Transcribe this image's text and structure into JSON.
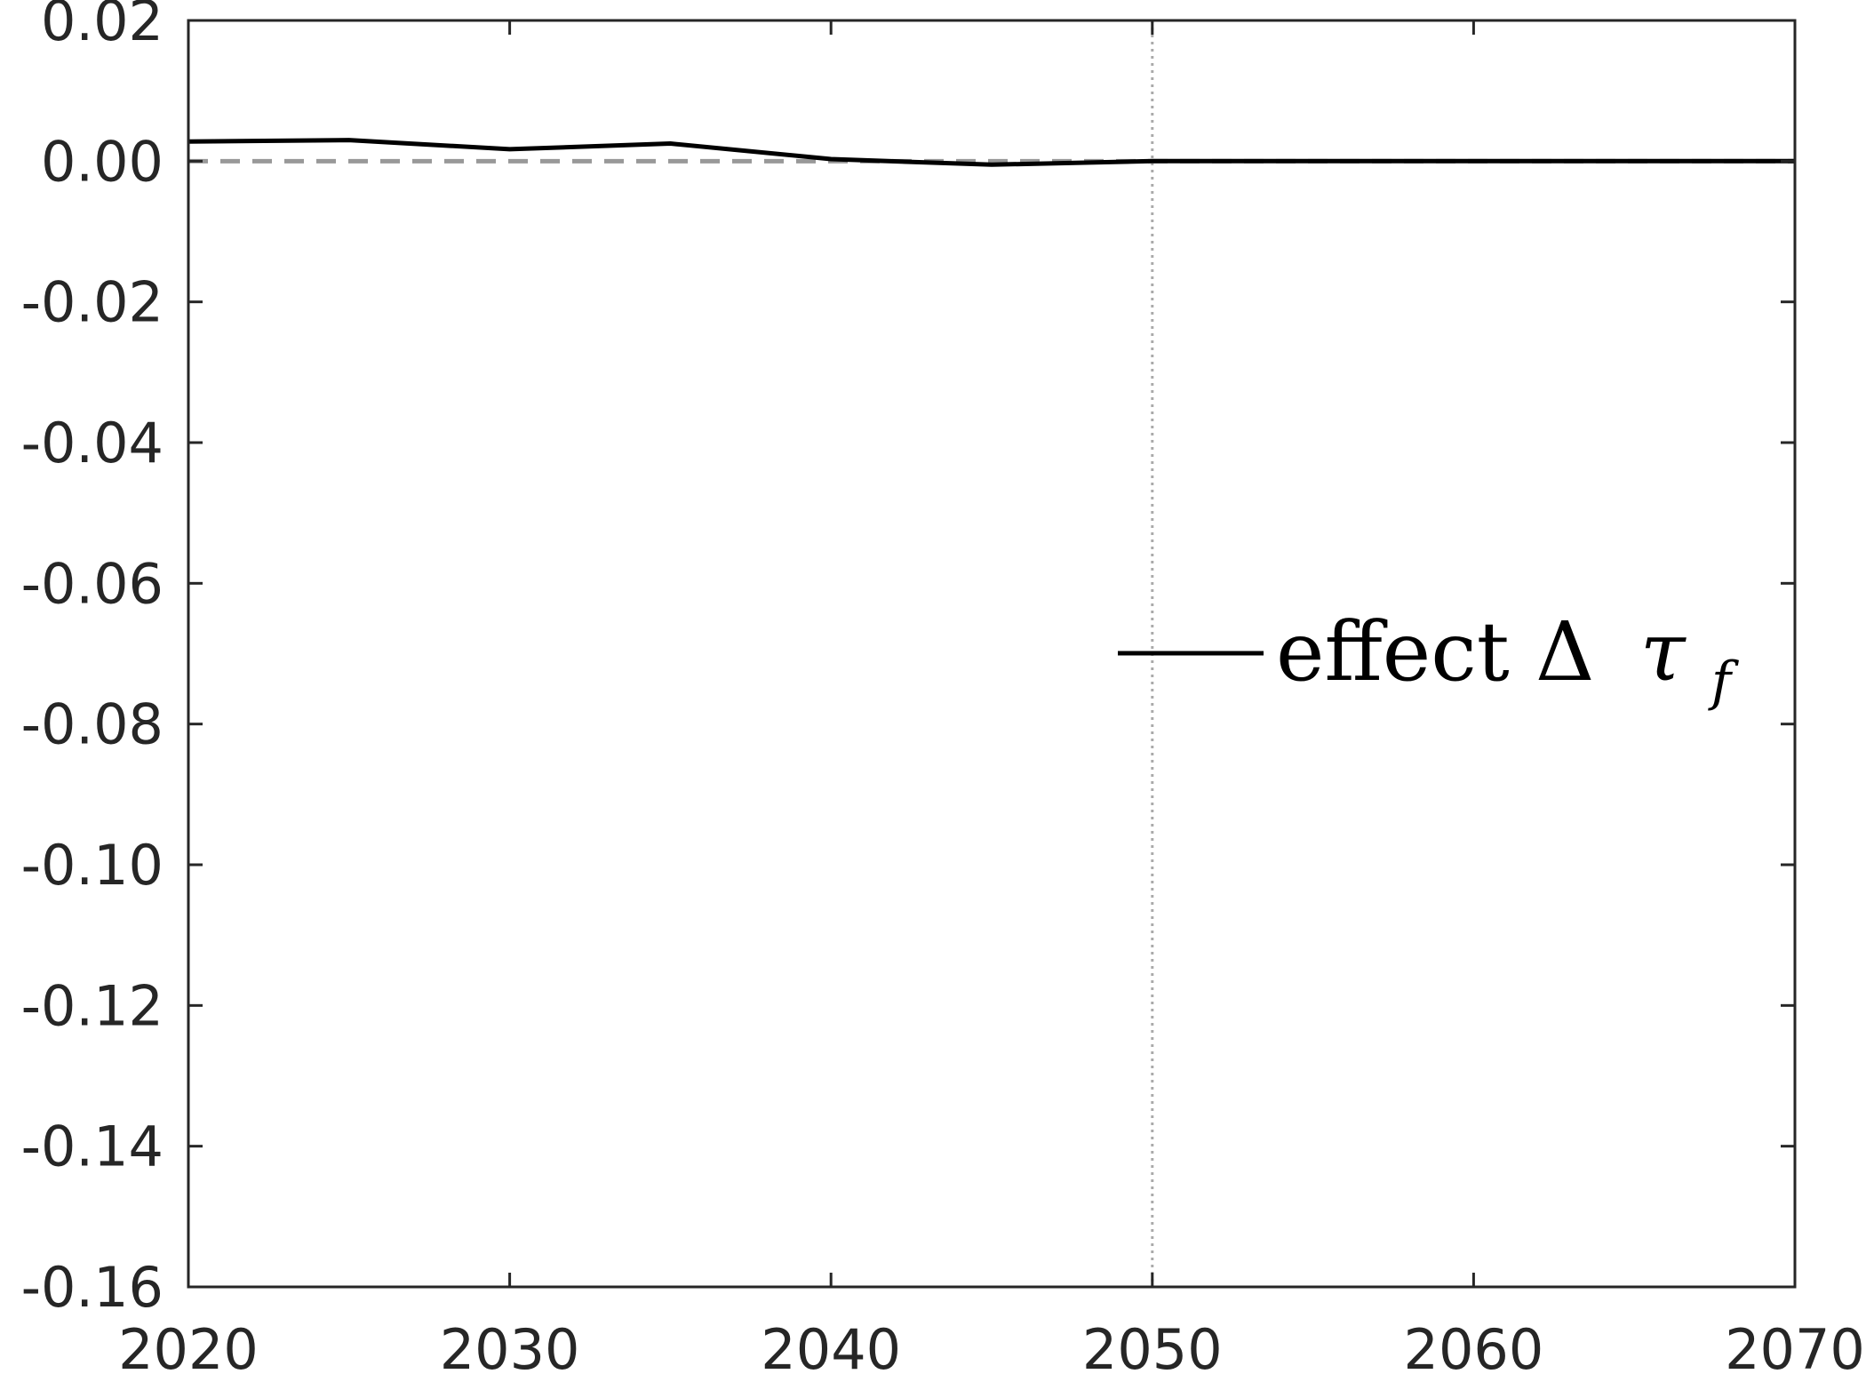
{
  "chart_data": {
    "type": "line",
    "title": "",
    "xlabel": "",
    "ylabel": "",
    "xlim": [
      2020,
      2070
    ],
    "ylim": [
      -0.16,
      0.02
    ],
    "x_ticks": [
      "2020",
      "2030",
      "2040",
      "2050",
      "2060",
      "2070"
    ],
    "y_ticks": [
      "0.02",
      "0.00",
      "-0.02",
      "-0.04",
      "-0.06",
      "-0.08",
      "-0.10",
      "-0.12",
      "-0.14",
      "-0.16"
    ],
    "grid": false,
    "reference_lines": [
      {
        "orientation": "horizontal",
        "value": 0.0,
        "style": "dashed",
        "color": "#999999"
      },
      {
        "orientation": "vertical",
        "value": 2050,
        "style": "dotted",
        "color": "#aaaaaa"
      }
    ],
    "legend": {
      "placement": "center-right",
      "entries": [
        {
          "text": "effect Δ",
          "symbol": "τ",
          "subscript": "f"
        }
      ]
    },
    "series": [
      {
        "name": "effect Δ τf",
        "color": "#000000",
        "x": [
          2020,
          2025,
          2030,
          2035,
          2040,
          2045,
          2050,
          2055,
          2060,
          2065,
          2070
        ],
        "y": [
          0.0028,
          0.003,
          0.0017,
          0.0025,
          0.0003,
          -0.0005,
          0.0,
          0.0,
          0.0,
          0.0,
          0.0
        ]
      }
    ]
  }
}
